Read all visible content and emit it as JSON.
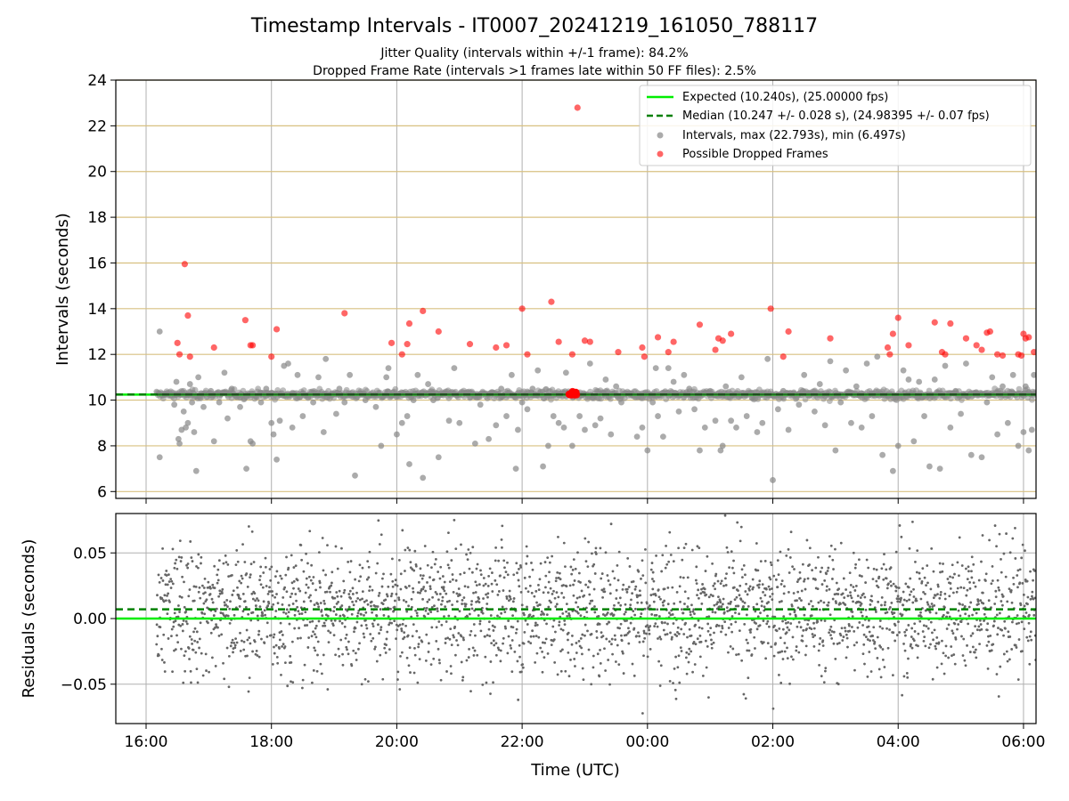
{
  "figure": {
    "title": "Timestamp Intervals - IT0007_20241219_161050_788117",
    "subtitle_1": "Jitter Quality (intervals within +/-1 frame): 84.2%",
    "subtitle_2": "Dropped Frame Rate (intervals >1 frames late within 50 FF files): 2.5%",
    "xlabel": "Time (UTC)"
  },
  "colors": {
    "expected": "#00ee00",
    "median": "#008000",
    "intervals": "#888888",
    "dropped": "#ff0000",
    "hgrid_top": "#d8c080",
    "grid": "#b0b0b0"
  },
  "chart_data": [
    {
      "type": "scatter",
      "panel": "top",
      "ylabel": "Intervals (seconds)",
      "xlim": [
        "15:31",
        "06:12"
      ],
      "ylim": [
        5.7,
        24
      ],
      "x_ticks": [
        "16:00",
        "18:00",
        "20:00",
        "22:00",
        "00:00",
        "02:00",
        "04:00",
        "06:00"
      ],
      "y_ticks": [
        "6",
        "8",
        "10",
        "12",
        "14",
        "16",
        "18",
        "20",
        "22",
        "24"
      ],
      "grid": true,
      "legend_position": "top-right",
      "legend": [
        {
          "label": "Expected (10.240s), (25.00000 fps)",
          "style": "solid-line"
        },
        {
          "label": "Median (10.247 +/- 0.028 s), (24.98395 +/- 0.07 fps)",
          "style": "dashed-line"
        },
        {
          "label": "Intervals, max (22.793s), min (6.497s)",
          "style": "grey-dot"
        },
        {
          "label": "Possible Dropped Frames",
          "style": "red-dot"
        }
      ],
      "expected_interval": 10.24,
      "median_interval": 10.247,
      "x_start": "16:10",
      "x_end": "06:12",
      "intervals_outliers": [
        [
          "16:13",
          13.0
        ],
        [
          "16:13",
          7.5
        ],
        [
          "16:27",
          9.8
        ],
        [
          "16:29",
          10.8
        ],
        [
          "16:31",
          8.3
        ],
        [
          "16:32",
          8.1
        ],
        [
          "16:34",
          8.7
        ],
        [
          "16:36",
          9.5
        ],
        [
          "16:38",
          8.8
        ],
        [
          "16:40",
          9.0
        ],
        [
          "16:42",
          10.7
        ],
        [
          "16:44",
          9.9
        ],
        [
          "16:46",
          8.6
        ],
        [
          "16:48",
          6.9
        ],
        [
          "16:50",
          11.0
        ],
        [
          "16:55",
          9.7
        ],
        [
          "17:02",
          10.4
        ],
        [
          "17:05",
          8.2
        ],
        [
          "17:10",
          9.9
        ],
        [
          "17:15",
          11.2
        ],
        [
          "17:18",
          9.2
        ],
        [
          "17:22",
          10.5
        ],
        [
          "17:30",
          9.7
        ],
        [
          "17:36",
          7.0
        ],
        [
          "17:40",
          8.2
        ],
        [
          "17:42",
          8.1
        ],
        [
          "17:50",
          9.9
        ],
        [
          "17:55",
          10.5
        ],
        [
          "18:00",
          9.0
        ],
        [
          "18:02",
          8.5
        ],
        [
          "18:05",
          7.4
        ],
        [
          "18:08",
          9.1
        ],
        [
          "18:12",
          11.5
        ],
        [
          "18:16",
          11.6
        ],
        [
          "18:20",
          8.8
        ],
        [
          "18:25",
          11.1
        ],
        [
          "18:30",
          9.3
        ],
        [
          "18:35",
          10.1
        ],
        [
          "18:40",
          9.9
        ],
        [
          "18:45",
          11.0
        ],
        [
          "18:50",
          8.6
        ],
        [
          "18:52",
          11.8
        ],
        [
          "18:58",
          10.3
        ],
        [
          "19:02",
          9.4
        ],
        [
          "19:05",
          10.5
        ],
        [
          "19:10",
          9.9
        ],
        [
          "19:15",
          11.1
        ],
        [
          "19:20",
          6.7
        ],
        [
          "19:25",
          10.3
        ],
        [
          "19:30",
          10.0
        ],
        [
          "19:40",
          9.7
        ],
        [
          "19:45",
          8.0
        ],
        [
          "19:50",
          11.0
        ],
        [
          "19:52",
          11.4
        ],
        [
          "19:55",
          10.2
        ],
        [
          "20:00",
          8.5
        ],
        [
          "20:05",
          9.0
        ],
        [
          "20:10",
          9.3
        ],
        [
          "20:12",
          7.2
        ],
        [
          "20:16",
          10.0
        ],
        [
          "20:20",
          11.1
        ],
        [
          "20:25",
          6.6
        ],
        [
          "20:30",
          10.7
        ],
        [
          "20:35",
          10.0
        ],
        [
          "20:40",
          7.5
        ],
        [
          "20:45",
          10.3
        ],
        [
          "20:50",
          9.1
        ],
        [
          "20:55",
          11.4
        ],
        [
          "21:00",
          9.0
        ],
        [
          "21:10",
          10.1
        ],
        [
          "21:15",
          8.1
        ],
        [
          "21:20",
          9.8
        ],
        [
          "21:28",
          8.3
        ],
        [
          "21:35",
          8.9
        ],
        [
          "21:40",
          10.5
        ],
        [
          "21:45",
          9.3
        ],
        [
          "21:50",
          11.1
        ],
        [
          "21:54",
          7.0
        ],
        [
          "21:56",
          8.7
        ],
        [
          "22:00",
          9.9
        ],
        [
          "22:05",
          9.6
        ],
        [
          "22:10",
          10.5
        ],
        [
          "22:15",
          11.3
        ],
        [
          "22:20",
          7.1
        ],
        [
          "22:25",
          8.0
        ],
        [
          "22:30",
          9.3
        ],
        [
          "22:35",
          9.0
        ],
        [
          "22:40",
          8.8
        ],
        [
          "22:42",
          11.2
        ],
        [
          "22:48",
          8.0
        ],
        [
          "22:55",
          9.3
        ],
        [
          "23:00",
          8.7
        ],
        [
          "23:05",
          11.6
        ],
        [
          "23:10",
          8.9
        ],
        [
          "23:15",
          9.2
        ],
        [
          "23:20",
          10.9
        ],
        [
          "23:25",
          8.5
        ],
        [
          "23:30",
          10.6
        ],
        [
          "23:35",
          9.9
        ],
        [
          "23:45",
          10.3
        ],
        [
          "23:50",
          8.4
        ],
        [
          "23:55",
          8.8
        ],
        [
          "00:00",
          7.8
        ],
        [
          "00:05",
          9.9
        ],
        [
          "00:08",
          11.4
        ],
        [
          "00:10",
          9.3
        ],
        [
          "00:15",
          8.4
        ],
        [
          "00:20",
          11.4
        ],
        [
          "00:25",
          10.8
        ],
        [
          "00:30",
          9.5
        ],
        [
          "00:35",
          11.1
        ],
        [
          "00:40",
          10.5
        ],
        [
          "00:45",
          9.6
        ],
        [
          "00:50",
          7.8
        ],
        [
          "00:55",
          8.8
        ],
        [
          "01:00",
          10.4
        ],
        [
          "01:05",
          9.1
        ],
        [
          "01:10",
          7.8
        ],
        [
          "01:12",
          8.0
        ],
        [
          "01:15",
          10.6
        ],
        [
          "01:20",
          9.1
        ],
        [
          "01:25",
          8.8
        ],
        [
          "01:30",
          11.0
        ],
        [
          "01:35",
          9.3
        ],
        [
          "01:40",
          10.1
        ],
        [
          "01:45",
          8.6
        ],
        [
          "01:50",
          9.0
        ],
        [
          "01:55",
          11.8
        ],
        [
          "02:00",
          6.5
        ],
        [
          "02:05",
          9.6
        ],
        [
          "02:10",
          10.4
        ],
        [
          "02:15",
          8.7
        ],
        [
          "02:20",
          10.3
        ],
        [
          "02:25",
          9.8
        ],
        [
          "02:30",
          11.1
        ],
        [
          "02:35",
          10.2
        ],
        [
          "02:40",
          9.5
        ],
        [
          "02:45",
          10.7
        ],
        [
          "02:50",
          8.9
        ],
        [
          "02:55",
          11.7
        ],
        [
          "03:00",
          7.8
        ],
        [
          "03:05",
          9.9
        ],
        [
          "03:10",
          11.3
        ],
        [
          "03:15",
          9.0
        ],
        [
          "03:20",
          10.6
        ],
        [
          "03:25",
          8.8
        ],
        [
          "03:30",
          11.6
        ],
        [
          "03:35",
          9.3
        ],
        [
          "03:40",
          11.9
        ],
        [
          "03:45",
          7.6
        ],
        [
          "03:50",
          10.2
        ],
        [
          "03:55",
          6.9
        ],
        [
          "04:00",
          8.0
        ],
        [
          "04:05",
          11.3
        ],
        [
          "04:10",
          10.9
        ],
        [
          "04:15",
          8.2
        ],
        [
          "04:20",
          10.8
        ],
        [
          "04:25",
          9.3
        ],
        [
          "04:30",
          7.1
        ],
        [
          "04:35",
          10.9
        ],
        [
          "04:40",
          7.0
        ],
        [
          "04:45",
          11.5
        ],
        [
          "04:50",
          8.8
        ],
        [
          "04:55",
          10.4
        ],
        [
          "05:00",
          9.4
        ],
        [
          "05:05",
          11.6
        ],
        [
          "05:10",
          7.6
        ],
        [
          "05:15",
          10.3
        ],
        [
          "05:20",
          7.5
        ],
        [
          "05:25",
          9.9
        ],
        [
          "05:30",
          11.0
        ],
        [
          "05:35",
          8.5
        ],
        [
          "05:40",
          10.6
        ],
        [
          "05:45",
          9.0
        ],
        [
          "05:50",
          11.1
        ],
        [
          "05:55",
          8.0
        ],
        [
          "06:00",
          8.6
        ],
        [
          "06:02",
          10.6
        ],
        [
          "06:05",
          7.8
        ],
        [
          "06:08",
          8.7
        ],
        [
          "06:10",
          11.1
        ]
      ],
      "dropped_frames": [
        [
          "16:30",
          12.5
        ],
        [
          "16:32",
          12.0
        ],
        [
          "16:37",
          15.95
        ],
        [
          "16:40",
          13.7
        ],
        [
          "16:42",
          11.9
        ],
        [
          "17:05",
          12.3
        ],
        [
          "17:35",
          13.5
        ],
        [
          "17:40",
          12.4
        ],
        [
          "17:42",
          12.4
        ],
        [
          "18:00",
          11.9
        ],
        [
          "18:05",
          13.1
        ],
        [
          "19:10",
          13.8
        ],
        [
          "19:55",
          12.5
        ],
        [
          "20:05",
          12.0
        ],
        [
          "20:10",
          12.45
        ],
        [
          "20:12",
          13.35
        ],
        [
          "20:25",
          13.9
        ],
        [
          "20:40",
          13.0
        ],
        [
          "21:10",
          12.45
        ],
        [
          "21:35",
          12.3
        ],
        [
          "21:45",
          12.4
        ],
        [
          "22:00",
          14.0
        ],
        [
          "22:05",
          12.0
        ],
        [
          "22:28",
          14.3
        ],
        [
          "22:35",
          12.55
        ],
        [
          "22:48",
          12.0
        ],
        [
          "22:53",
          22.793
        ],
        [
          "23:00",
          12.6
        ],
        [
          "23:05",
          12.55
        ],
        [
          "23:32",
          12.1
        ],
        [
          "23:55",
          12.3
        ],
        [
          "23:57",
          11.9
        ],
        [
          "00:10",
          12.75
        ],
        [
          "00:20",
          12.1
        ],
        [
          "00:25",
          12.55
        ],
        [
          "00:50",
          13.3
        ],
        [
          "01:05",
          12.2
        ],
        [
          "01:08",
          12.7
        ],
        [
          "01:12",
          12.6
        ],
        [
          "01:20",
          12.9
        ],
        [
          "01:58",
          14.0
        ],
        [
          "02:10",
          11.9
        ],
        [
          "02:15",
          13.0
        ],
        [
          "02:55",
          12.7
        ],
        [
          "03:50",
          12.3
        ],
        [
          "03:52",
          12.0
        ],
        [
          "03:55",
          12.9
        ],
        [
          "04:00",
          13.6
        ],
        [
          "04:10",
          12.4
        ],
        [
          "04:35",
          13.4
        ],
        [
          "04:42",
          12.1
        ],
        [
          "04:45",
          12.0
        ],
        [
          "04:50",
          13.35
        ],
        [
          "05:05",
          12.7
        ],
        [
          "05:15",
          12.4
        ],
        [
          "05:20",
          12.2
        ],
        [
          "05:25",
          12.95
        ],
        [
          "05:28",
          13.0
        ],
        [
          "05:35",
          12.0
        ],
        [
          "05:40",
          11.95
        ],
        [
          "05:55",
          12.0
        ],
        [
          "05:58",
          11.95
        ],
        [
          "06:00",
          12.9
        ],
        [
          "06:02",
          12.7
        ],
        [
          "06:05",
          12.75
        ],
        [
          "06:10",
          12.1
        ]
      ],
      "dropped_cluster": {
        "x_from": "22:45",
        "x_to": "22:52",
        "y": 10.3
      }
    },
    {
      "type": "scatter",
      "panel": "bottom",
      "ylabel": "Residuals (seconds)",
      "xlim": [
        "15:31",
        "06:12"
      ],
      "ylim": [
        -0.08,
        0.08
      ],
      "y_ticks": [
        "0.05",
        "0.00",
        "−0.05"
      ],
      "x_ticks": [
        "16:00",
        "18:00",
        "20:00",
        "22:00",
        "00:00",
        "02:00",
        "04:00",
        "06:00"
      ],
      "grid": true,
      "expected_residual": 0.0,
      "median_residual": 0.007,
      "residual_spread_sd": 0.025,
      "residual_point_count": 2600
    }
  ]
}
